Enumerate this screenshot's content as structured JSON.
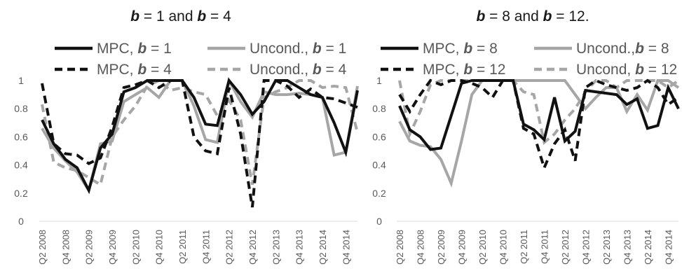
{
  "chart_data": [
    {
      "type": "line",
      "title": {
        "pre": "b",
        "mid": " = 1 and ",
        "pre2": "b",
        "post": " = 4"
      },
      "ylim": [
        0,
        1
      ],
      "y_ticks": [
        "0",
        "0.2",
        "0.4",
        "0.6",
        "0.8",
        "1"
      ],
      "grid": false,
      "legend_placement": "top",
      "x_labels": [
        "Q2 2008",
        "Q4 2008",
        "Q2 2009",
        "Q4 2009",
        "Q2 2010",
        "Q4 2010",
        "Q2 2011",
        "Q4 2011",
        "Q2 2012",
        "Q4 2012",
        "Q2 2013",
        "Q4 2013",
        "Q2 2014",
        "Q4 2014"
      ],
      "categories": [
        "Q2 2008",
        "Q3 2008",
        "Q4 2008",
        "Q1 2009",
        "Q2 2009",
        "Q3 2009",
        "Q4 2009",
        "Q1 2010",
        "Q2 2010",
        "Q3 2010",
        "Q4 2010",
        "Q1 2011",
        "Q2 2011",
        "Q3 2011",
        "Q4 2011",
        "Q1 2012",
        "Q2 2012",
        "Q3 2012",
        "Q4 2012",
        "Q1 2013",
        "Q2 2013",
        "Q3 2013",
        "Q4 2013",
        "Q1 2014",
        "Q2 2014",
        "Q3 2014",
        "Q4 2014",
        "Q1 2015"
      ],
      "series": [
        {
          "legend": {
            "pre": "MPC, ",
            "var": "b",
            "post": " = 1"
          },
          "color": "#111111",
          "dash": "solid",
          "values": [
            0.72,
            0.55,
            0.44,
            0.38,
            0.22,
            0.52,
            0.62,
            0.92,
            0.95,
            1.0,
            1.0,
            1.0,
            1.0,
            0.88,
            0.69,
            0.68,
            1.0,
            0.9,
            0.76,
            0.85,
            1.0,
            1.0,
            0.95,
            0.9,
            0.88,
            0.7,
            0.49,
            0.93
          ]
        },
        {
          "legend": {
            "pre": "Uncond., ",
            "var": "b",
            "post": " = 1"
          },
          "color": "#a6a6a6",
          "dash": "solid",
          "values": [
            0.66,
            0.52,
            0.43,
            0.35,
            0.22,
            0.55,
            0.57,
            0.85,
            0.9,
            0.95,
            0.88,
            1.0,
            1.0,
            0.82,
            0.58,
            0.56,
            1.0,
            0.85,
            0.74,
            0.92,
            0.9,
            0.9,
            0.91,
            0.9,
            0.88,
            0.47,
            0.49,
            0.96
          ]
        },
        {
          "legend": {
            "pre": "MPC, ",
            "var": "b",
            "post": " = 4"
          },
          "color": "#111111",
          "dash": "dashed",
          "values": [
            0.98,
            0.55,
            0.48,
            0.47,
            0.41,
            0.45,
            0.67,
            0.95,
            0.97,
            1.0,
            0.95,
            1.0,
            1.0,
            0.6,
            0.5,
            0.48,
            0.95,
            0.62,
            0.1,
            1.0,
            1.0,
            0.96,
            0.88,
            0.94,
            0.88,
            0.87,
            0.84,
            0.81
          ]
        },
        {
          "legend": {
            "pre": "Uncond., ",
            "var": "b",
            "post": " = 4"
          },
          "color": "#a6a6a6",
          "dash": "dashed",
          "values": [
            0.83,
            0.42,
            0.38,
            0.36,
            0.31,
            0.26,
            0.6,
            0.72,
            0.82,
            0.96,
            1.0,
            0.93,
            0.95,
            0.92,
            0.9,
            0.75,
            0.86,
            0.72,
            0.26,
            0.88,
            0.92,
            0.95,
            1.0,
            1.0,
            0.95,
            0.96,
            0.95,
            0.63
          ]
        }
      ]
    },
    {
      "type": "line",
      "title": {
        "pre": "b",
        "mid": " = 8 and ",
        "pre2": "b",
        "post": " = 12."
      },
      "ylim": [
        0,
        1
      ],
      "y_ticks": [
        "0",
        "0.2",
        "0.4",
        "0.6",
        "0.8",
        "1"
      ],
      "grid": false,
      "legend_placement": "top",
      "x_labels": [
        "Q2 2008",
        "Q4 2008",
        "Q2 2009",
        "Q4 2009",
        "Q2 2010",
        "Q4 2010",
        "Q2 2011",
        "Q4 2011",
        "Q2 2012",
        "Q4 2012",
        "Q2 2013",
        "Q4 2013",
        "Q2 2014",
        "Q4 2014"
      ],
      "categories": [
        "Q2 2008",
        "Q3 2008",
        "Q4 2008",
        "Q1 2009",
        "Q2 2009",
        "Q3 2009",
        "Q4 2009",
        "Q1 2010",
        "Q2 2010",
        "Q3 2010",
        "Q4 2010",
        "Q1 2011",
        "Q2 2011",
        "Q3 2011",
        "Q4 2011",
        "Q1 2012",
        "Q2 2012",
        "Q3 2012",
        "Q4 2012",
        "Q1 2013",
        "Q2 2013",
        "Q3 2013",
        "Q4 2013",
        "Q1 2014",
        "Q2 2014",
        "Q3 2014",
        "Q4 2014",
        "Q1 2015"
      ],
      "series": [
        {
          "legend": {
            "pre": "MPC, ",
            "var": "b",
            "post": " = 8"
          },
          "color": "#111111",
          "dash": "solid",
          "values": [
            0.82,
            0.65,
            0.6,
            0.51,
            0.52,
            0.75,
            0.98,
            1.0,
            1.0,
            1.0,
            1.0,
            1.0,
            0.69,
            0.65,
            0.58,
            0.88,
            0.57,
            0.64,
            0.93,
            0.92,
            0.91,
            0.9,
            0.83,
            0.87,
            0.66,
            0.68,
            0.95,
            0.8
          ]
        },
        {
          "legend": {
            "pre": "Uncond.,",
            "var": "b",
            "post": " = 8"
          },
          "color": "#a6a6a6",
          "dash": "solid",
          "values": [
            0.71,
            0.57,
            0.54,
            0.53,
            0.44,
            0.27,
            0.57,
            0.9,
            1.0,
            1.0,
            1.0,
            1.0,
            1.0,
            1.0,
            1.0,
            1.0,
            1.0,
            0.9,
            0.8,
            0.88,
            0.95,
            0.95,
            0.78,
            0.9,
            0.79,
            1.0,
            1.0,
            0.95
          ]
        },
        {
          "legend": {
            "pre": "MPC, ",
            "var": "b",
            "post": " = 12"
          },
          "color": "#111111",
          "dash": "dashed",
          "values": [
            0.9,
            0.78,
            0.9,
            1.0,
            0.97,
            1.0,
            1.0,
            0.98,
            0.95,
            0.88,
            1.0,
            1.0,
            0.66,
            0.62,
            0.38,
            0.55,
            0.65,
            0.43,
            0.95,
            1.0,
            0.97,
            0.95,
            0.93,
            0.95,
            1.0,
            0.95,
            0.83,
            0.88
          ]
        },
        {
          "legend": {
            "pre": "Uncond, ",
            "var": "b",
            "post": " = 12"
          },
          "color": "#a6a6a6",
          "dash": "dashed",
          "values": [
            1.0,
            0.62,
            0.78,
            0.97,
            1.0,
            1.0,
            1.0,
            1.0,
            1.0,
            1.0,
            1.0,
            1.0,
            0.92,
            0.9,
            0.56,
            0.62,
            0.72,
            0.8,
            0.92,
            1.0,
            1.0,
            0.95,
            1.0,
            1.0,
            1.0,
            1.0,
            0.95,
            1.0
          ]
        }
      ]
    }
  ]
}
